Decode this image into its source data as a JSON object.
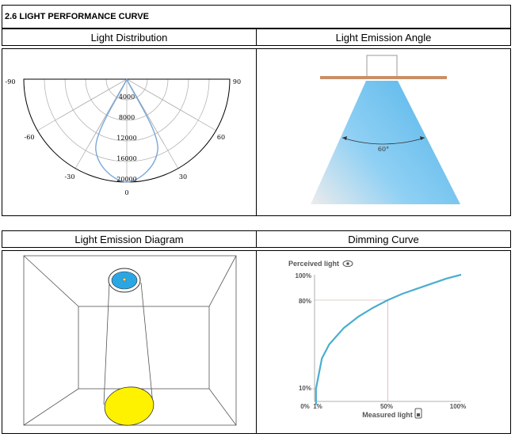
{
  "section": {
    "title": "2.6 LIGHT PERFORMANCE CURVE"
  },
  "headers": {
    "light_distribution": "Light Distribution",
    "emission_angle": "Light Emission Angle",
    "emission_diagram": "Light Emission Diagram",
    "dimming_curve": "Dimming Curve"
  },
  "polar": {
    "angles": [
      "-90",
      "90",
      "-60",
      "60",
      "-30",
      "30",
      "0"
    ],
    "rings": [
      "4000",
      "8000",
      "12000",
      "16000",
      "20000"
    ]
  },
  "emission_angle": {
    "angle_label": "60°"
  },
  "dimming": {
    "y_title": "Perceived light",
    "x_title": "Measured light",
    "y_ticks": [
      "100%",
      "80%",
      "10%"
    ],
    "x_ticks": [
      "0%",
      "1%",
      "50%",
      "100%"
    ]
  },
  "colors": {
    "beam_blue": "#5bb8ea",
    "curve_blue": "#4aaed0",
    "floor_yellow": "#fff200",
    "mount_brown": "#c8906a",
    "polar_line": "#7aa8d8"
  },
  "chart_data": {
    "type": "line",
    "title": "",
    "xlabel": "Measured light",
    "ylabel": "Perceived light",
    "x": [
      1,
      5,
      10,
      20,
      30,
      40,
      50,
      60,
      70,
      80,
      90,
      100
    ],
    "series": [
      {
        "values": [
          10,
          34,
          45,
          58,
          67,
          74,
          80,
          85,
          89,
          93,
          97,
          100
        ]
      }
    ],
    "xlim": [
      0,
      100
    ],
    "ylim": [
      0,
      100
    ],
    "grid": false
  }
}
